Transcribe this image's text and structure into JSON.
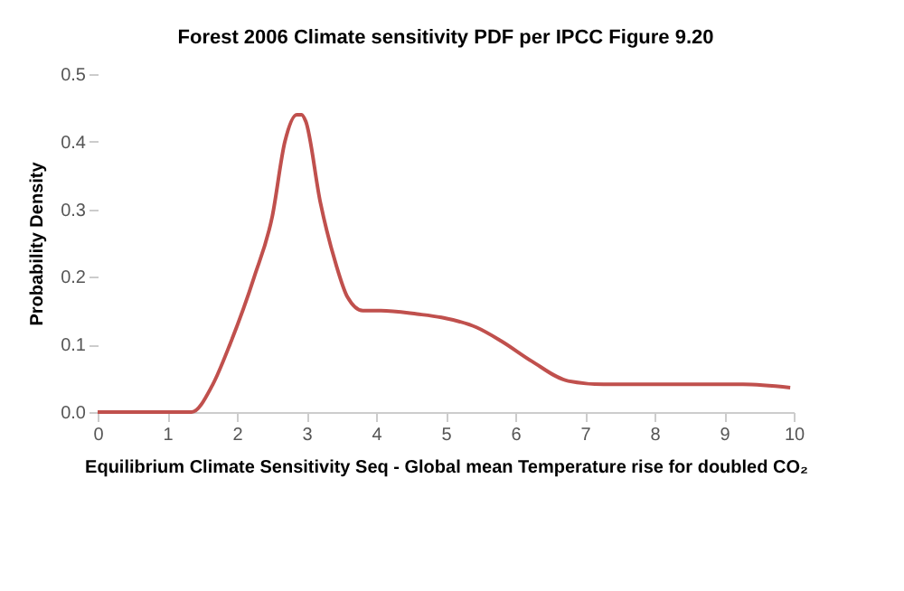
{
  "chart_data": {
    "type": "line",
    "title": "Forest 2006 Climate sensitivity  PDF per IPCC Figure 9.20",
    "xlabel": "Equilibrium Climate Sensitivity Seq - Global mean Temperature rise for doubled CO₂",
    "ylabel": "Probability  Density",
    "x": [
      0,
      1.0,
      1.35,
      1.65,
      1.9,
      2.25,
      2.51,
      2.69,
      2.86,
      2.93,
      2.99,
      3.2,
      3.42,
      3.59,
      3.81,
      4.07,
      4.59,
      4.94,
      5.45,
      5.8,
      6.24,
      6.76,
      7.27,
      8.0,
      9.27,
      9.95
    ],
    "series": [
      {
        "color": "#c0504d",
        "values": [
          0,
          0,
          0,
          0.04,
          0.1,
          0.2,
          0.29,
          0.4,
          0.44,
          0.44,
          0.43,
          0.31,
          0.22,
          0.17,
          0.15,
          0.15,
          0.145,
          0.14,
          0.125,
          0.105,
          0.075,
          0.046,
          0.041,
          0.041,
          0.041,
          0.036
        ]
      }
    ],
    "xlim": [
      0,
      10
    ],
    "xticks": [
      0,
      1,
      2,
      3,
      4,
      5,
      6,
      7,
      8,
      9,
      10
    ],
    "ylim": [
      0,
      0.5
    ],
    "yticks": [
      {
        "value": 0,
        "label": "0.0"
      },
      0.1,
      0.2,
      0.3,
      0.4,
      0.5
    ],
    "marker": "none",
    "line_style": "solid"
  }
}
